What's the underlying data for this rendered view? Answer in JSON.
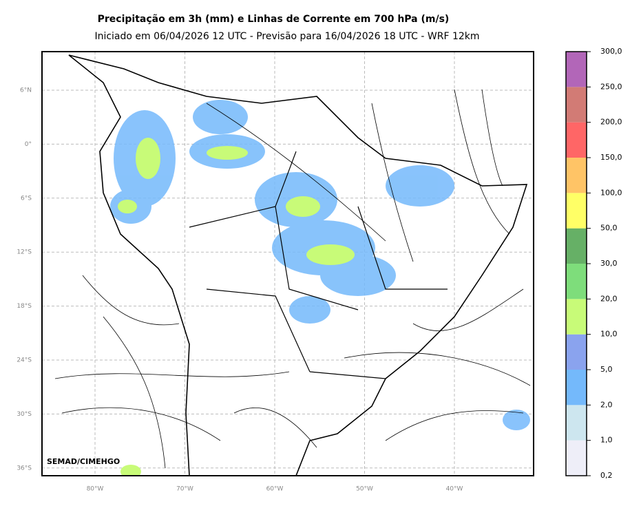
{
  "header": {
    "title": "Precipitação em 3h (mm) e Linhas de Corrente em 700 hPa (m/s)",
    "subtitle": "Iniciado em 06/04/2026 12 UTC - Previsão para 16/04/2026 18 UTC - WRF 12km"
  },
  "map": {
    "lat_labels": [
      "6°N",
      "0°",
      "6°S",
      "12°S",
      "18°S",
      "24°S",
      "30°S",
      "36°S"
    ],
    "lon_labels": [
      "80°W",
      "70°W",
      "60°W",
      "50°W",
      "40°W"
    ],
    "credit": "SEMAD/CIMEHGO"
  },
  "colorbar": {
    "labels": [
      "0,2",
      "1,0",
      "2,0",
      "5,0",
      "10,0",
      "20,0",
      "30,0",
      "50,0",
      "100,0",
      "150,0",
      "200,0",
      "250,0",
      "300,0"
    ],
    "colors": [
      "#eeeef8",
      "#cde6ef",
      "#74b9fb",
      "#8aa3ee",
      "#c8fb78",
      "#7edd7b",
      "#66b066",
      "#ffff66",
      "#ffc466",
      "#ff6666",
      "#d27b75",
      "#b266b8"
    ]
  }
}
